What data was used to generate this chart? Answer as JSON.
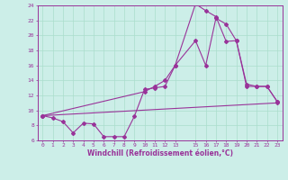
{
  "xlabel": "Windchill (Refroidissement éolien,°C)",
  "bg_color": "#cceee8",
  "grid_color": "#aaddcc",
  "line_color": "#993399",
  "line1_x": [
    0,
    1,
    2,
    3,
    4,
    5,
    6,
    7,
    8,
    9,
    10,
    11,
    12,
    13,
    15,
    16,
    17,
    18,
    19,
    20,
    21,
    22,
    23
  ],
  "line1_y": [
    9.3,
    9.0,
    8.5,
    7.0,
    8.3,
    8.2,
    6.5,
    6.5,
    6.5,
    9.2,
    12.8,
    13.0,
    13.2,
    16.0,
    19.3,
    16.0,
    22.3,
    21.5,
    19.3,
    13.2,
    13.2,
    13.2,
    11.2
  ],
  "line2_x": [
    0,
    10,
    11,
    12,
    13,
    15,
    16,
    17,
    18,
    19,
    20,
    21,
    22,
    23
  ],
  "line2_y": [
    9.3,
    12.5,
    13.2,
    14.0,
    16.0,
    24.2,
    23.3,
    22.5,
    19.2,
    19.3,
    13.5,
    13.2,
    13.2,
    11.2
  ],
  "line3_x": [
    0,
    23
  ],
  "line3_y": [
    9.3,
    11.0
  ],
  "xlim": [
    -0.5,
    23.5
  ],
  "ylim": [
    6,
    24
  ],
  "xticks": [
    0,
    1,
    2,
    3,
    4,
    5,
    6,
    7,
    8,
    9,
    10,
    11,
    12,
    13,
    15,
    16,
    17,
    18,
    19,
    20,
    21,
    22,
    23
  ],
  "yticks": [
    6,
    8,
    10,
    12,
    14,
    16,
    18,
    20,
    22,
    24
  ],
  "xlabel_fontsize": 5.5,
  "tick_fontsize": 4.5
}
